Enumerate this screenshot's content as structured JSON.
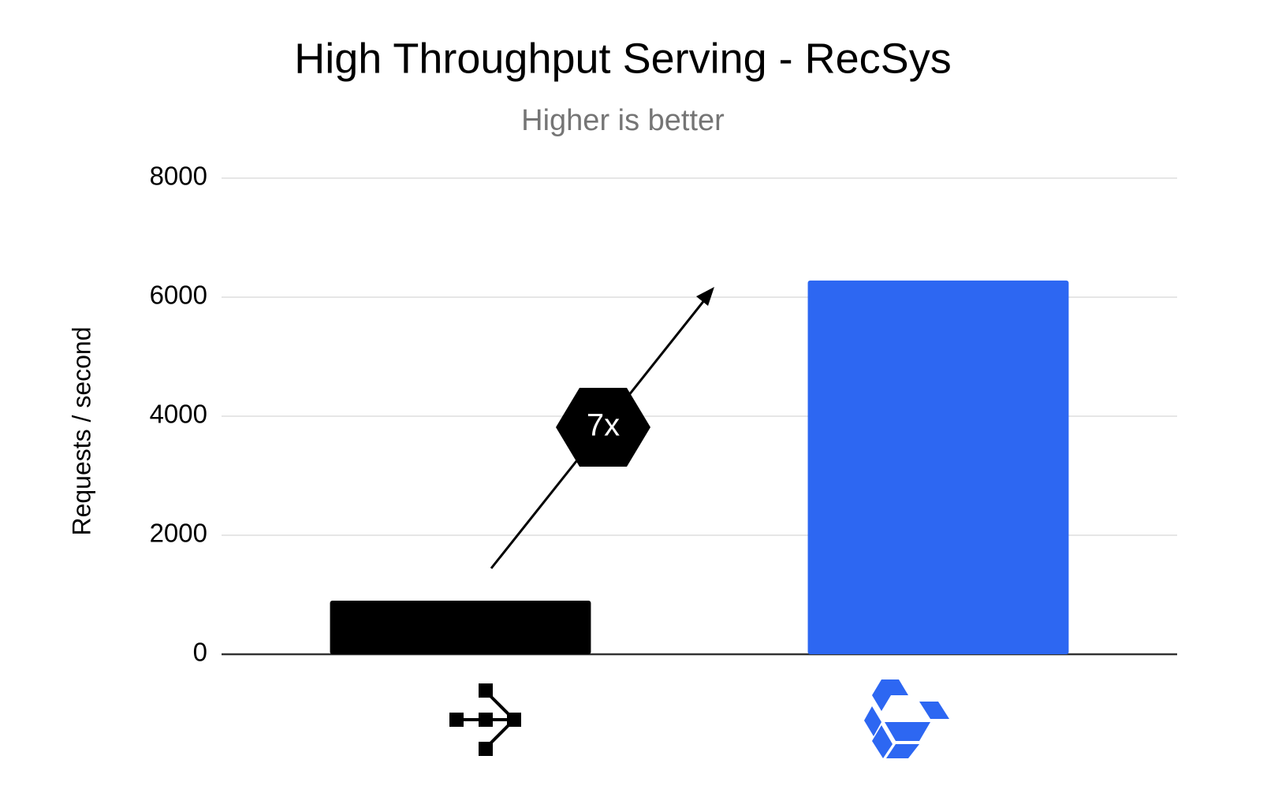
{
  "chart_data": {
    "type": "bar",
    "title": "High Throughput Serving - RecSys",
    "subtitle": "Higher is better",
    "y_label": "Requests / second",
    "categories": [
      null,
      null
    ],
    "values": [
      900,
      6280
    ],
    "colors": [
      "#000000",
      "#2d67f2"
    ],
    "ylim": [
      0,
      8000
    ],
    "yticks": [
      0,
      2000,
      4000,
      6000,
      8000
    ],
    "grid": true,
    "annotation": "7x"
  }
}
